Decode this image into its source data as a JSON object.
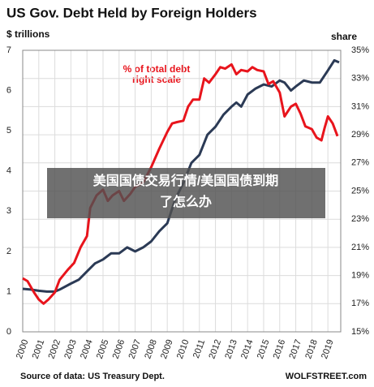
{
  "chart_data": {
    "type": "line",
    "title": "US Gov. Debt Held by Foreign Holders",
    "ylabel": "$ trillions",
    "y2label": "share",
    "annotation": [
      "% of total debt",
      "right scale"
    ],
    "source": "Source of data: US Treasury Dept.",
    "brand": "WOLFSTREET.com",
    "overlay": [
      "美国国债交易行情/美国国债到期",
      "了怎么办"
    ],
    "xlim": [
      2000,
      2019.8
    ],
    "xticks": [
      2000,
      2001,
      2002,
      2003,
      2004,
      2005,
      2006,
      2007,
      2008,
      2009,
      2010,
      2011,
      2012,
      2013,
      2014,
      2015,
      2016,
      2017,
      2018,
      2019
    ],
    "ylim": [
      0,
      7
    ],
    "yticks": [
      0,
      1,
      2,
      3,
      4,
      5,
      6,
      7
    ],
    "y2lim": [
      15,
      35
    ],
    "y2ticks": [
      {
        "value": 15,
        "label": "15%"
      },
      {
        "value": 17,
        "label": "17%"
      },
      {
        "value": 19,
        "label": "19%"
      },
      {
        "value": 21,
        "label": "21%"
      },
      {
        "value": 23,
        "label": "23%"
      },
      {
        "value": 25,
        "label": "25%"
      },
      {
        "value": 27,
        "label": "27%"
      },
      {
        "value": 29,
        "label": "29%"
      },
      {
        "value": 31,
        "label": "31%"
      },
      {
        "value": 33,
        "label": "33%"
      },
      {
        "value": 35,
        "label": "35%"
      }
    ],
    "grid": true,
    "series": [
      {
        "color": "#2b3a55",
        "x": [
          2000,
          2000.5,
          2001,
          2001.5,
          2002,
          2002.3,
          2003,
          2003.5,
          2004,
          2004.5,
          2005,
          2005.5,
          2006,
          2006.5,
          2007,
          2007.5,
          2008,
          2008.5,
          2009,
          2009.5,
          2010,
          2010.5,
          2011,
          2011.5,
          2012,
          2012.5,
          2013,
          2013.3,
          2013.6,
          2014,
          2014.5,
          2015,
          2015.5,
          2016,
          2016.3,
          2016.7,
          2017,
          2017.5,
          2018,
          2018.5,
          2019,
          2019.4,
          2019.7
        ],
        "values": [
          1.07,
          1.05,
          1.02,
          1.0,
          1.0,
          1.05,
          1.2,
          1.3,
          1.5,
          1.7,
          1.8,
          1.95,
          1.95,
          2.1,
          2.0,
          2.1,
          2.25,
          2.5,
          2.7,
          3.3,
          3.7,
          4.2,
          4.4,
          4.9,
          5.1,
          5.4,
          5.6,
          5.7,
          5.6,
          5.9,
          6.05,
          6.15,
          6.1,
          6.25,
          6.2,
          6.0,
          6.1,
          6.25,
          6.2,
          6.2,
          6.5,
          6.75,
          6.7
        ]
      },
      {
        "color": "#e8141c",
        "axis": "y2",
        "x": [
          2000,
          2000.3,
          2000.7,
          2001,
          2001.3,
          2001.6,
          2002,
          2002.3,
          2002.8,
          2003.2,
          2003.6,
          2004,
          2004.2,
          2004.6,
          2005,
          2005.3,
          2005.6,
          2006,
          2006.3,
          2006.7,
          2007,
          2007.5,
          2008,
          2008.5,
          2009,
          2009.3,
          2009.6,
          2010,
          2010.3,
          2010.6,
          2011,
          2011.3,
          2011.6,
          2012,
          2012.3,
          2012.6,
          2013,
          2013.3,
          2013.6,
          2014,
          2014.3,
          2014.6,
          2015,
          2015.3,
          2015.6,
          2016,
          2016.3,
          2016.7,
          2017,
          2017.3,
          2017.6,
          2018,
          2018.3,
          2018.6,
          2018.8,
          2019,
          2019.3,
          2019.6
        ],
        "values": [
          18.8,
          18.6,
          17.8,
          17.3,
          17.0,
          17.3,
          17.8,
          18.7,
          19.4,
          19.9,
          21.0,
          21.8,
          23.8,
          24.7,
          25.1,
          24.3,
          24.7,
          25.0,
          24.3,
          24.8,
          25.3,
          25.6,
          26.7,
          28.0,
          29.2,
          29.8,
          29.9,
          30.0,
          31.0,
          31.5,
          31.5,
          33.0,
          32.7,
          33.3,
          33.8,
          33.7,
          34.0,
          33.3,
          33.6,
          33.5,
          33.8,
          33.6,
          33.5,
          32.6,
          32.8,
          32.0,
          30.3,
          31.0,
          31.2,
          30.5,
          29.6,
          29.4,
          28.8,
          28.6,
          29.5,
          30.3,
          29.8,
          28.9
        ]
      }
    ]
  }
}
